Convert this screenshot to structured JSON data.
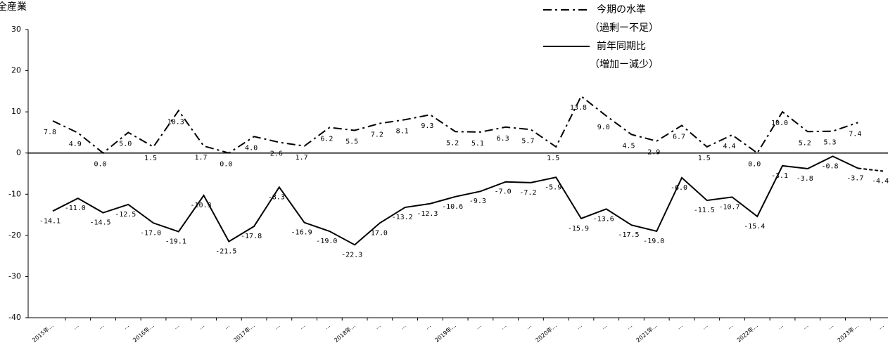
{
  "chart_data": {
    "type": "line",
    "title": "全産業",
    "categories": [
      "2015年…",
      "…",
      "…",
      "…",
      "2016年…",
      "…",
      "…",
      "…",
      "2017年…",
      "…",
      "…",
      "…",
      "2018年…",
      "…",
      "…",
      "…",
      "2019年…",
      "…",
      "…",
      "…",
      "2020年…",
      "…",
      "…",
      "…",
      "2021年…",
      "…",
      "…",
      "…",
      "2022年…",
      "…",
      "…",
      "…",
      "2023年…",
      "…"
    ],
    "ylim": [
      -40,
      30
    ],
    "yticks": [
      -40,
      -30,
      -20,
      -10,
      0,
      10,
      20,
      30
    ],
    "series": [
      {
        "name": "今期の水準",
        "subname": "（過剰ー不足）",
        "color": "#000000",
        "dash": "dashdot",
        "values": [
          7.8,
          4.9,
          0.0,
          5.0,
          1.5,
          10.3,
          1.7,
          0.0,
          4.0,
          2.6,
          1.7,
          6.2,
          5.5,
          7.2,
          8.1,
          9.3,
          5.2,
          5.1,
          6.3,
          5.7,
          1.5,
          13.8,
          9.0,
          4.5,
          2.9,
          6.7,
          1.5,
          4.4,
          0.0,
          10.0,
          5.2,
          5.3,
          7.4,
          null
        ],
        "value_labels": [
          "7.8",
          "4.9",
          "0.0",
          "5.0",
          "1.5",
          "10.3",
          "1.7",
          "0.0",
          "4.0",
          "2.6",
          "1.7",
          "6.2",
          "5.5",
          "7.2",
          "8.1",
          "9.3",
          "5.2",
          "5.1",
          "6.3",
          "5.7",
          "1.5",
          "13.8",
          "9.0",
          "4.5",
          "2.9",
          "6.7",
          "1.5",
          "4.4",
          "0.0",
          "10.0",
          "5.2",
          "5.3",
          "7.4",
          null
        ]
      },
      {
        "name": "前年同期比",
        "subname": "（増加ー減少）",
        "color": "#000000",
        "dash": "solid",
        "values": [
          -14.1,
          -11.0,
          -14.5,
          -12.5,
          -17.0,
          -19.1,
          -10.3,
          -21.5,
          -17.8,
          -8.3,
          -16.9,
          -19.0,
          -22.3,
          -17.0,
          -13.2,
          -12.3,
          -10.6,
          -9.3,
          -7.0,
          -7.2,
          -5.9,
          -15.9,
          -13.6,
          -17.5,
          -19.0,
          -6.0,
          -11.5,
          -10.7,
          -15.4,
          -3.1,
          -3.8,
          -0.8,
          -3.7,
          -4.4
        ],
        "value_labels": [
          "-14.1",
          "-11.0",
          "-14.5",
          "-12.5",
          "-17.0",
          "-19.1",
          "-10.3",
          "-21.5",
          "-17.8",
          "-8.3",
          "-16.9",
          "-19.0",
          "-22.3",
          "-17.0",
          "-13.2",
          "-12.3",
          "-10.6",
          "-9.3",
          "-7.0",
          "-7.2",
          "-5.9",
          "-15.9",
          "-13.6",
          "-17.5",
          "-19.0",
          "-6.0",
          "-11.5",
          "-10.7",
          "-15.4",
          "-3.1",
          "-3.8",
          "-0.8",
          "-3.7",
          "-4.4"
        ]
      }
    ]
  }
}
